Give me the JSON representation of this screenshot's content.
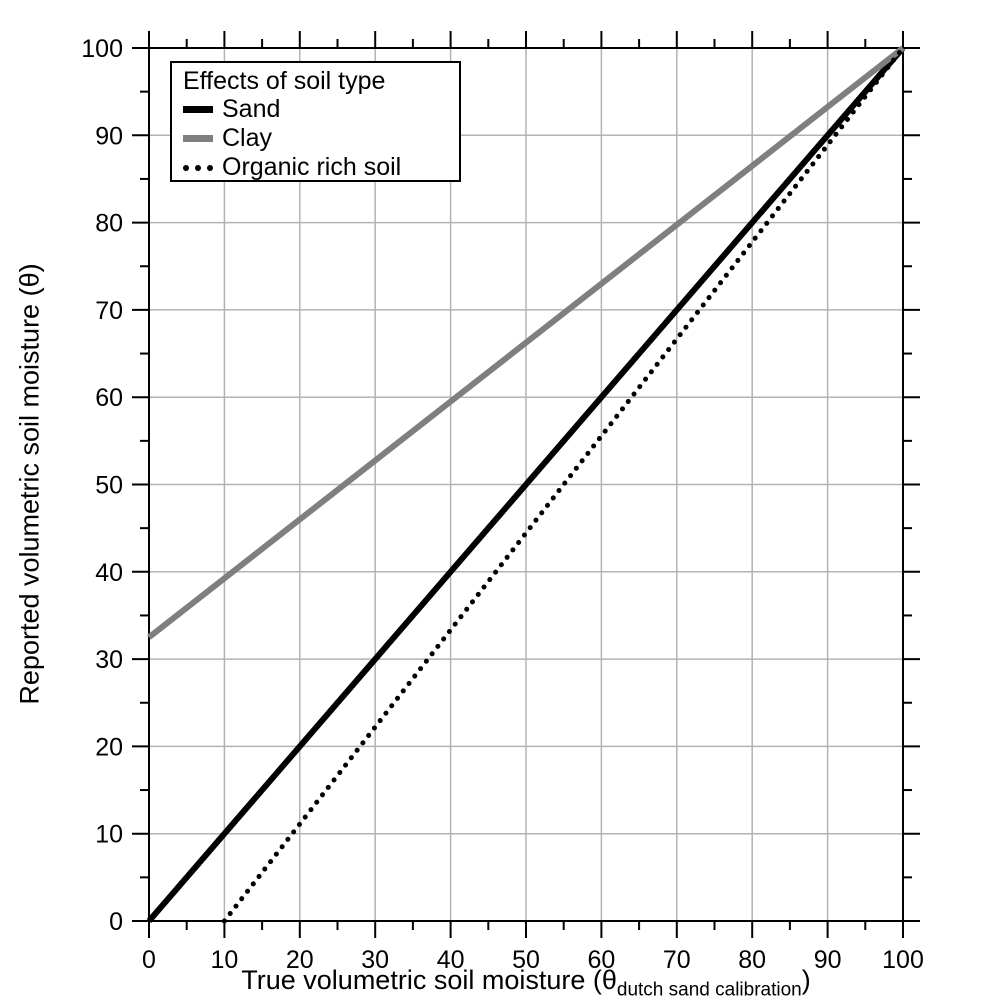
{
  "chart_data": {
    "type": "line",
    "xlabel": {
      "main": "True volumetric soil moisture (θ",
      "subscript": "dutch sand calibration",
      "suffix": ")"
    },
    "ylabel": "Reported volumetric soil moisture (θ)",
    "xlim": [
      0,
      100
    ],
    "ylim": [
      0,
      100
    ],
    "x_ticks": [
      0,
      10,
      20,
      30,
      40,
      50,
      60,
      70,
      80,
      90,
      100
    ],
    "y_ticks": [
      0,
      10,
      20,
      30,
      40,
      50,
      60,
      70,
      80,
      90,
      100
    ],
    "minor_tick_step": 5,
    "grid": true,
    "grid_color": "#b3b3b3",
    "axis_color": "#000000",
    "legend": {
      "title": "Effects of soil type",
      "position": "top-left"
    },
    "series": [
      {
        "name": "Sand",
        "color": "#000000",
        "style": "solid",
        "width": 6,
        "points": [
          [
            0,
            0
          ],
          [
            100,
            100
          ]
        ]
      },
      {
        "name": "Clay",
        "color": "#7f7f7f",
        "style": "solid",
        "width": 6,
        "points": [
          [
            0,
            32.5
          ],
          [
            100,
            100
          ]
        ]
      },
      {
        "name": "Organic rich soil",
        "color": "#000000",
        "style": "dotted",
        "width": 5,
        "points": [
          [
            10,
            0
          ],
          [
            100,
            100
          ]
        ]
      }
    ]
  }
}
